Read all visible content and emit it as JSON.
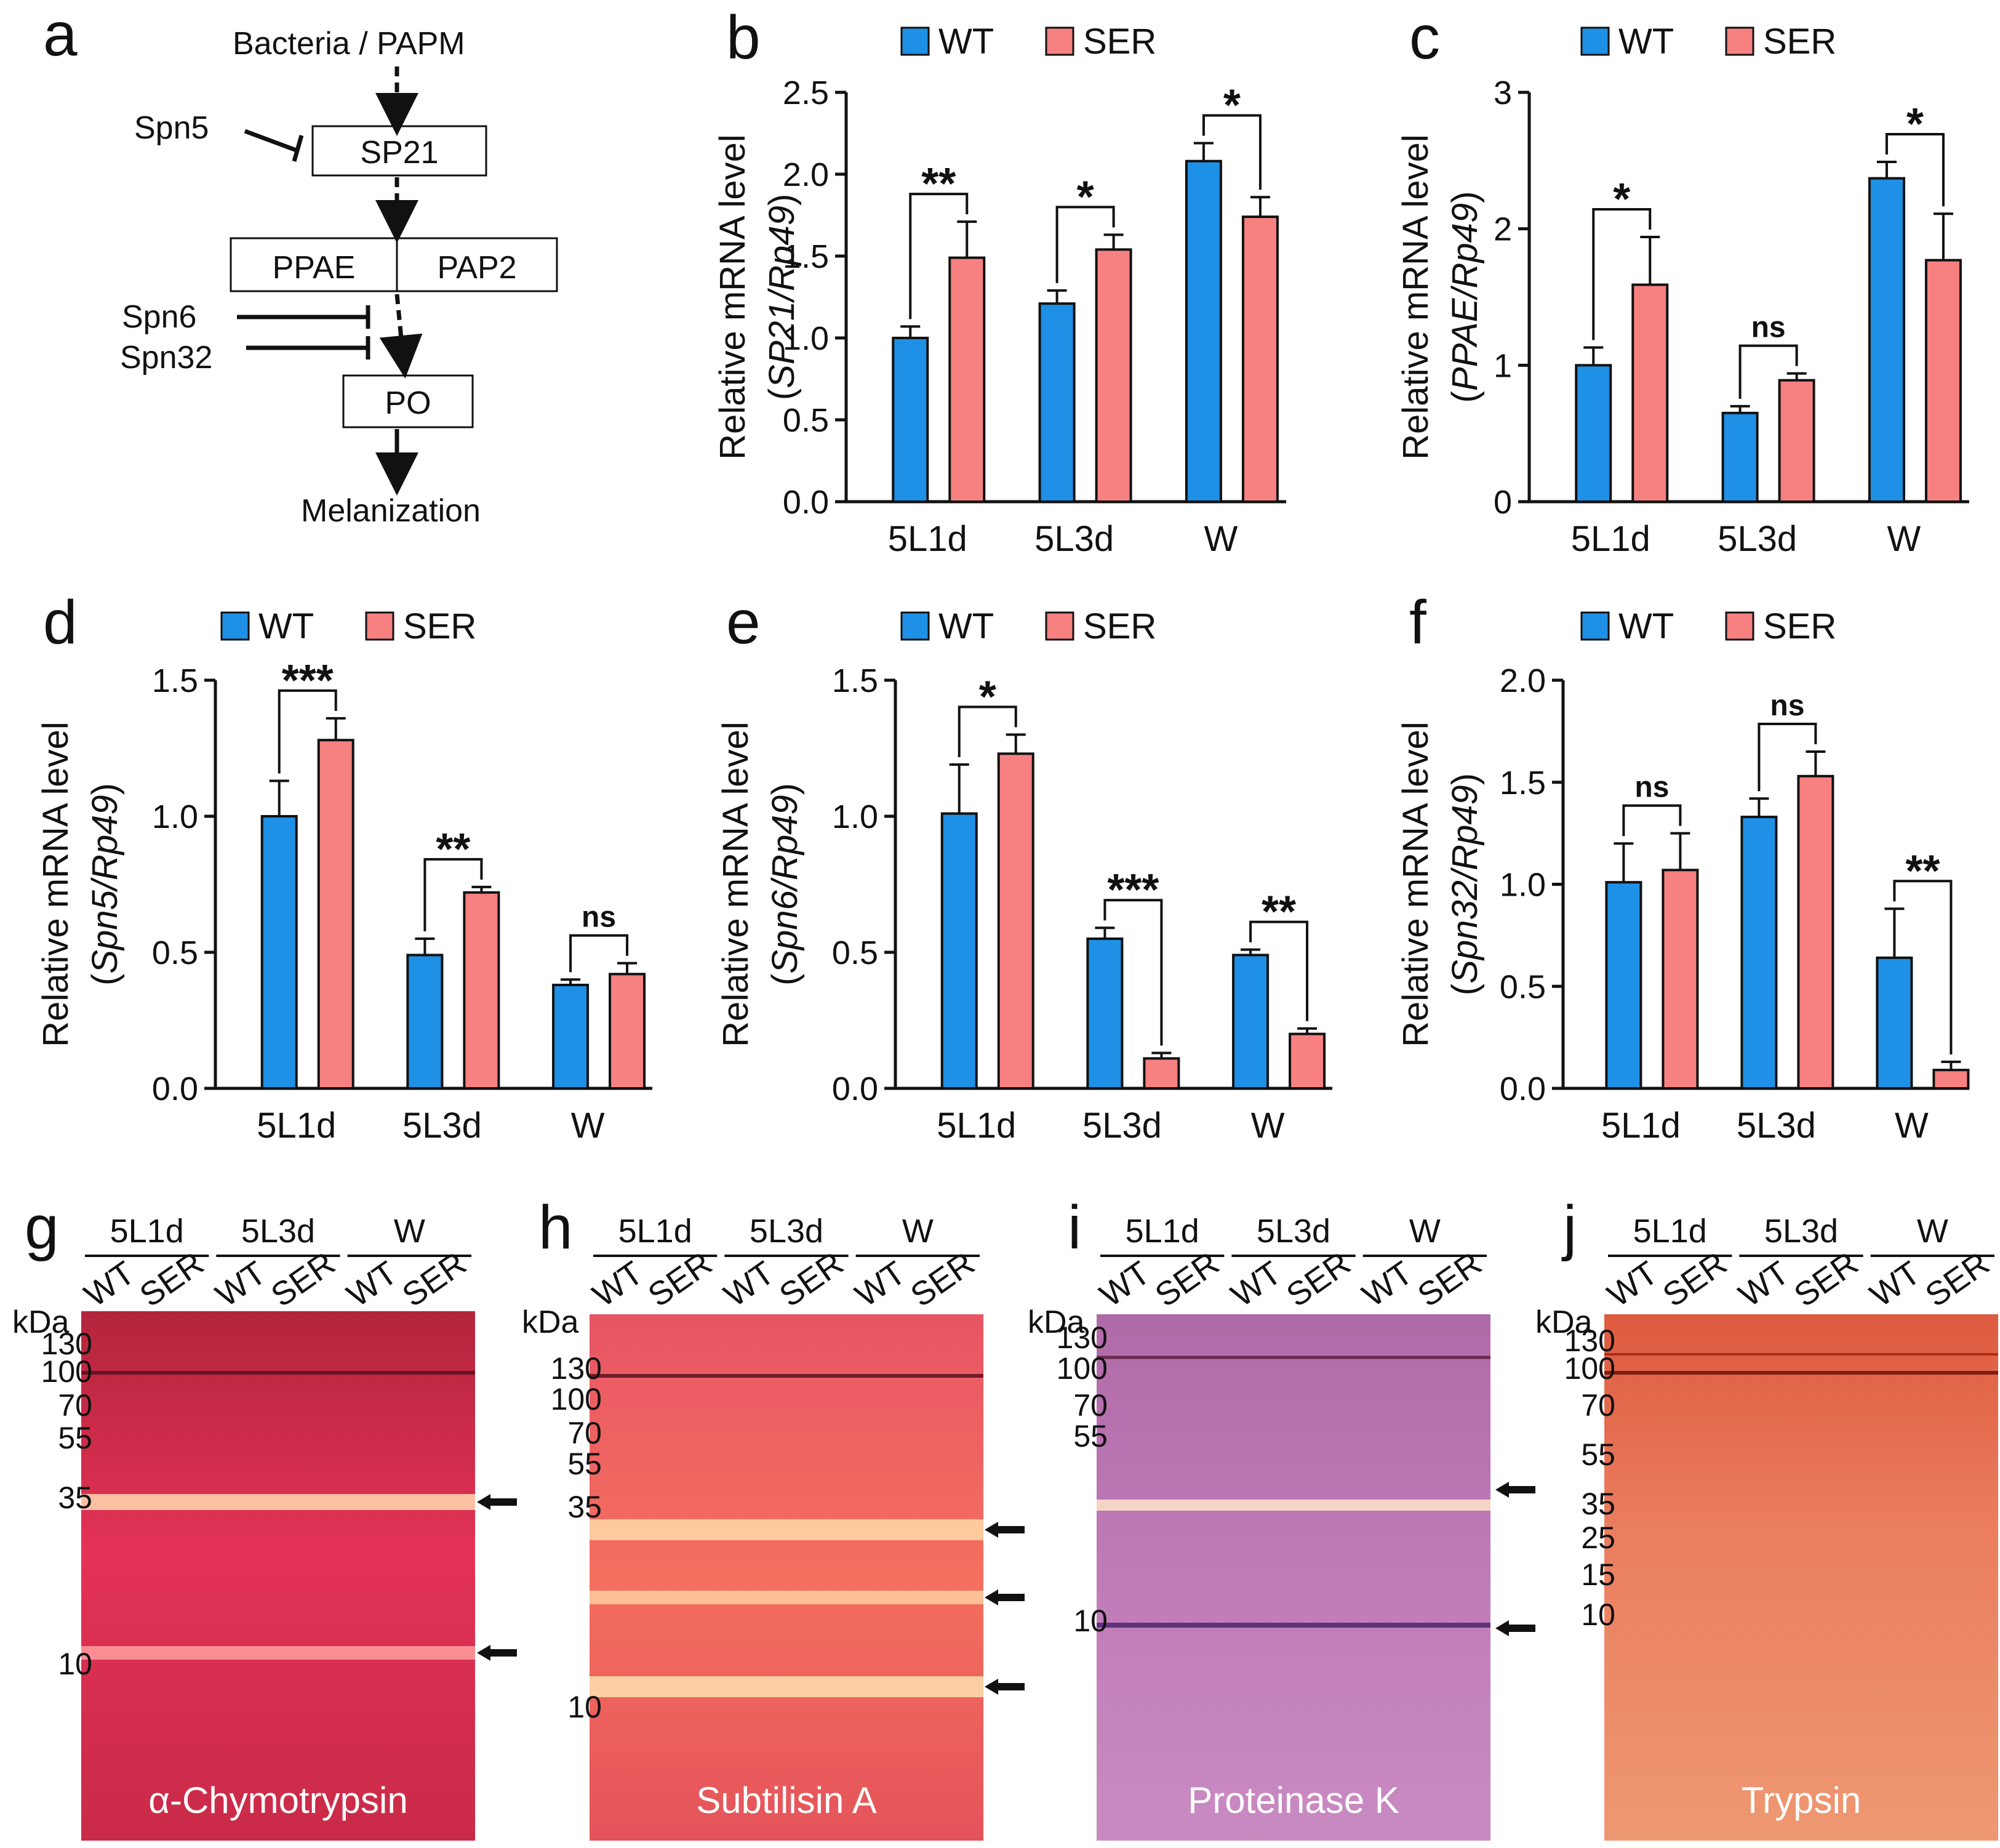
{
  "panel_letters": [
    "a",
    "b",
    "c",
    "d",
    "e",
    "f",
    "g",
    "h",
    "i",
    "j"
  ],
  "pathway": {
    "top": "Bacteria / PAPM",
    "sp21": "SP21",
    "ppae": "PPAE",
    "pap2": "PAP2",
    "po": "PO",
    "bottom": "Melanization",
    "spn5": "Spn5",
    "spn6": "Spn6",
    "spn32": "Spn32"
  },
  "legend": {
    "wt": "WT",
    "ser": "SER"
  },
  "colors": {
    "wt": "#1e90e6",
    "ser": "#f78181"
  },
  "ylabel_prefix": "Relative mRNA level",
  "chart_data": [
    {
      "type": "bar",
      "panel": "b",
      "gene": "SP21/Rp49",
      "categories": [
        "5L1d",
        "5L3d",
        "W"
      ],
      "ylim": [
        0,
        2.5
      ],
      "yticks": [
        0.0,
        0.5,
        1.0,
        1.5,
        2.0,
        2.5
      ],
      "ytick_labels": [
        "0.0",
        "0.5",
        "1.0",
        "1.5",
        "2.0",
        "2.5"
      ],
      "series": [
        {
          "name": "WT",
          "values": [
            1.0,
            1.21,
            2.08
          ],
          "errors": [
            0.07,
            0.08,
            0.11
          ]
        },
        {
          "name": "SER",
          "values": [
            1.49,
            1.54,
            1.74
          ],
          "errors": [
            0.22,
            0.09,
            0.12
          ]
        }
      ],
      "significance": [
        "**",
        "*",
        "*"
      ]
    },
    {
      "type": "bar",
      "panel": "c",
      "gene": "PPAE/Rp49",
      "categories": [
        "5L1d",
        "5L3d",
        "W"
      ],
      "ylim": [
        0,
        3
      ],
      "yticks": [
        0,
        1,
        2,
        3
      ],
      "ytick_labels": [
        "0",
        "1",
        "2",
        "3"
      ],
      "series": [
        {
          "name": "WT",
          "values": [
            1.0,
            0.65,
            2.37
          ],
          "errors": [
            0.13,
            0.05,
            0.12
          ]
        },
        {
          "name": "SER",
          "values": [
            1.59,
            0.89,
            1.77
          ],
          "errors": [
            0.35,
            0.05,
            0.34
          ]
        }
      ],
      "significance": [
        "*",
        "ns",
        "*"
      ]
    },
    {
      "type": "bar",
      "panel": "d",
      "gene": "Spn5/Rp49",
      "categories": [
        "5L1d",
        "5L3d",
        "W"
      ],
      "ylim": [
        0,
        1.5
      ],
      "yticks": [
        0.0,
        0.5,
        1.0,
        1.5
      ],
      "ytick_labels": [
        "0.0",
        "0.5",
        "1.0",
        "1.5"
      ],
      "series": [
        {
          "name": "WT",
          "values": [
            1.0,
            0.49,
            0.38
          ],
          "errors": [
            0.13,
            0.06,
            0.02
          ]
        },
        {
          "name": "SER",
          "values": [
            1.28,
            0.72,
            0.42
          ],
          "errors": [
            0.08,
            0.02,
            0.04
          ]
        }
      ],
      "significance": [
        "***",
        "**",
        "ns"
      ]
    },
    {
      "type": "bar",
      "panel": "e",
      "gene": "Spn6/Rp49",
      "categories": [
        "5L1d",
        "5L3d",
        "W"
      ],
      "ylim": [
        0,
        1.5
      ],
      "yticks": [
        0.0,
        0.5,
        1.0,
        1.5
      ],
      "ytick_labels": [
        "0.0",
        "0.5",
        "1.0",
        "1.5"
      ],
      "series": [
        {
          "name": "WT",
          "values": [
            1.01,
            0.55,
            0.49
          ],
          "errors": [
            0.18,
            0.04,
            0.02
          ]
        },
        {
          "name": "SER",
          "values": [
            1.23,
            0.11,
            0.2
          ],
          "errors": [
            0.07,
            0.02,
            0.02
          ]
        }
      ],
      "significance": [
        "*",
        "***",
        "**"
      ]
    },
    {
      "type": "bar",
      "panel": "f",
      "gene": "Spn32/Rp49",
      "categories": [
        "5L1d",
        "5L3d",
        "W"
      ],
      "ylim": [
        0,
        2.0
      ],
      "yticks": [
        0.0,
        0.5,
        1.0,
        1.5,
        2.0
      ],
      "ytick_labels": [
        "0.0",
        "0.5",
        "1.0",
        "1.5",
        "2.0"
      ],
      "series": [
        {
          "name": "WT",
          "values": [
            1.01,
            1.33,
            0.64
          ],
          "errors": [
            0.19,
            0.09,
            0.24
          ]
        },
        {
          "name": "SER",
          "values": [
            1.07,
            1.53,
            0.09
          ],
          "errors": [
            0.18,
            0.12,
            0.04
          ]
        }
      ],
      "significance": [
        "ns",
        "ns",
        "**"
      ]
    }
  ],
  "gels": [
    {
      "panel": "g",
      "enzyme": "α-Chymotrypsin",
      "kda": [
        "130",
        "100",
        "70",
        "55",
        "35",
        "10"
      ]
    },
    {
      "panel": "h",
      "enzyme": "Subtilisin A",
      "kda": [
        "130",
        "100",
        "70",
        "55",
        "35",
        "10"
      ]
    },
    {
      "panel": "i",
      "enzyme": "Proteinase K",
      "kda": [
        "130",
        "100",
        "70",
        "55",
        "10"
      ]
    },
    {
      "panel": "j",
      "enzyme": "Trypsin",
      "kda": [
        "130",
        "100",
        "70",
        "55",
        "35",
        "25",
        "15",
        "10"
      ]
    }
  ],
  "gel_groups": [
    "5L1d",
    "5L3d",
    "W"
  ],
  "gel_lanes": [
    "WT",
    "SER"
  ],
  "kda_label": "kDa"
}
